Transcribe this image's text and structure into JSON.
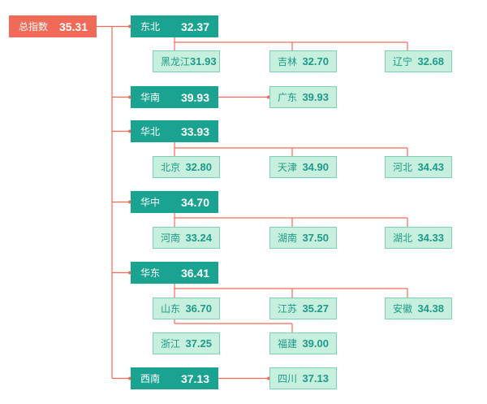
{
  "root": {
    "label": "总指数",
    "value": "35.31"
  },
  "regions": [
    {
      "label": "东北",
      "value": "32.37",
      "children": [
        {
          "label": "黑龙江",
          "value": "31.93"
        },
        {
          "label": "吉林",
          "value": "32.70"
        },
        {
          "label": "辽宁",
          "value": "32.68"
        }
      ]
    },
    {
      "label": "华南",
      "value": "39.93",
      "children": [
        {
          "label": "广东",
          "value": "39.93"
        }
      ]
    },
    {
      "label": "华北",
      "value": "33.93",
      "children": [
        {
          "label": "北京",
          "value": "32.80"
        },
        {
          "label": "天津",
          "value": "34.90"
        },
        {
          "label": "河北",
          "value": "34.43"
        }
      ]
    },
    {
      "label": "华中",
      "value": "34.70",
      "children": [
        {
          "label": "河南",
          "value": "33.24"
        },
        {
          "label": "湖南",
          "value": "37.50"
        },
        {
          "label": "湖北",
          "value": "34.33"
        }
      ]
    },
    {
      "label": "华东",
      "value": "36.41",
      "children": [
        {
          "label": "山东",
          "value": "36.70"
        },
        {
          "label": "江苏",
          "value": "35.27"
        },
        {
          "label": "安徽",
          "value": "34.38"
        },
        {
          "label": "浙江",
          "value": "37.25"
        },
        {
          "label": "福建",
          "value": "39.00"
        }
      ]
    },
    {
      "label": "西南",
      "value": "37.13",
      "children": [
        {
          "label": "四川",
          "value": "37.13"
        }
      ]
    }
  ],
  "colors": {
    "root": "#f06a57",
    "region": "#1aa391",
    "province_fill": "#c7efdd",
    "province_text": "#1e9a88",
    "connector": "#f06a57"
  }
}
